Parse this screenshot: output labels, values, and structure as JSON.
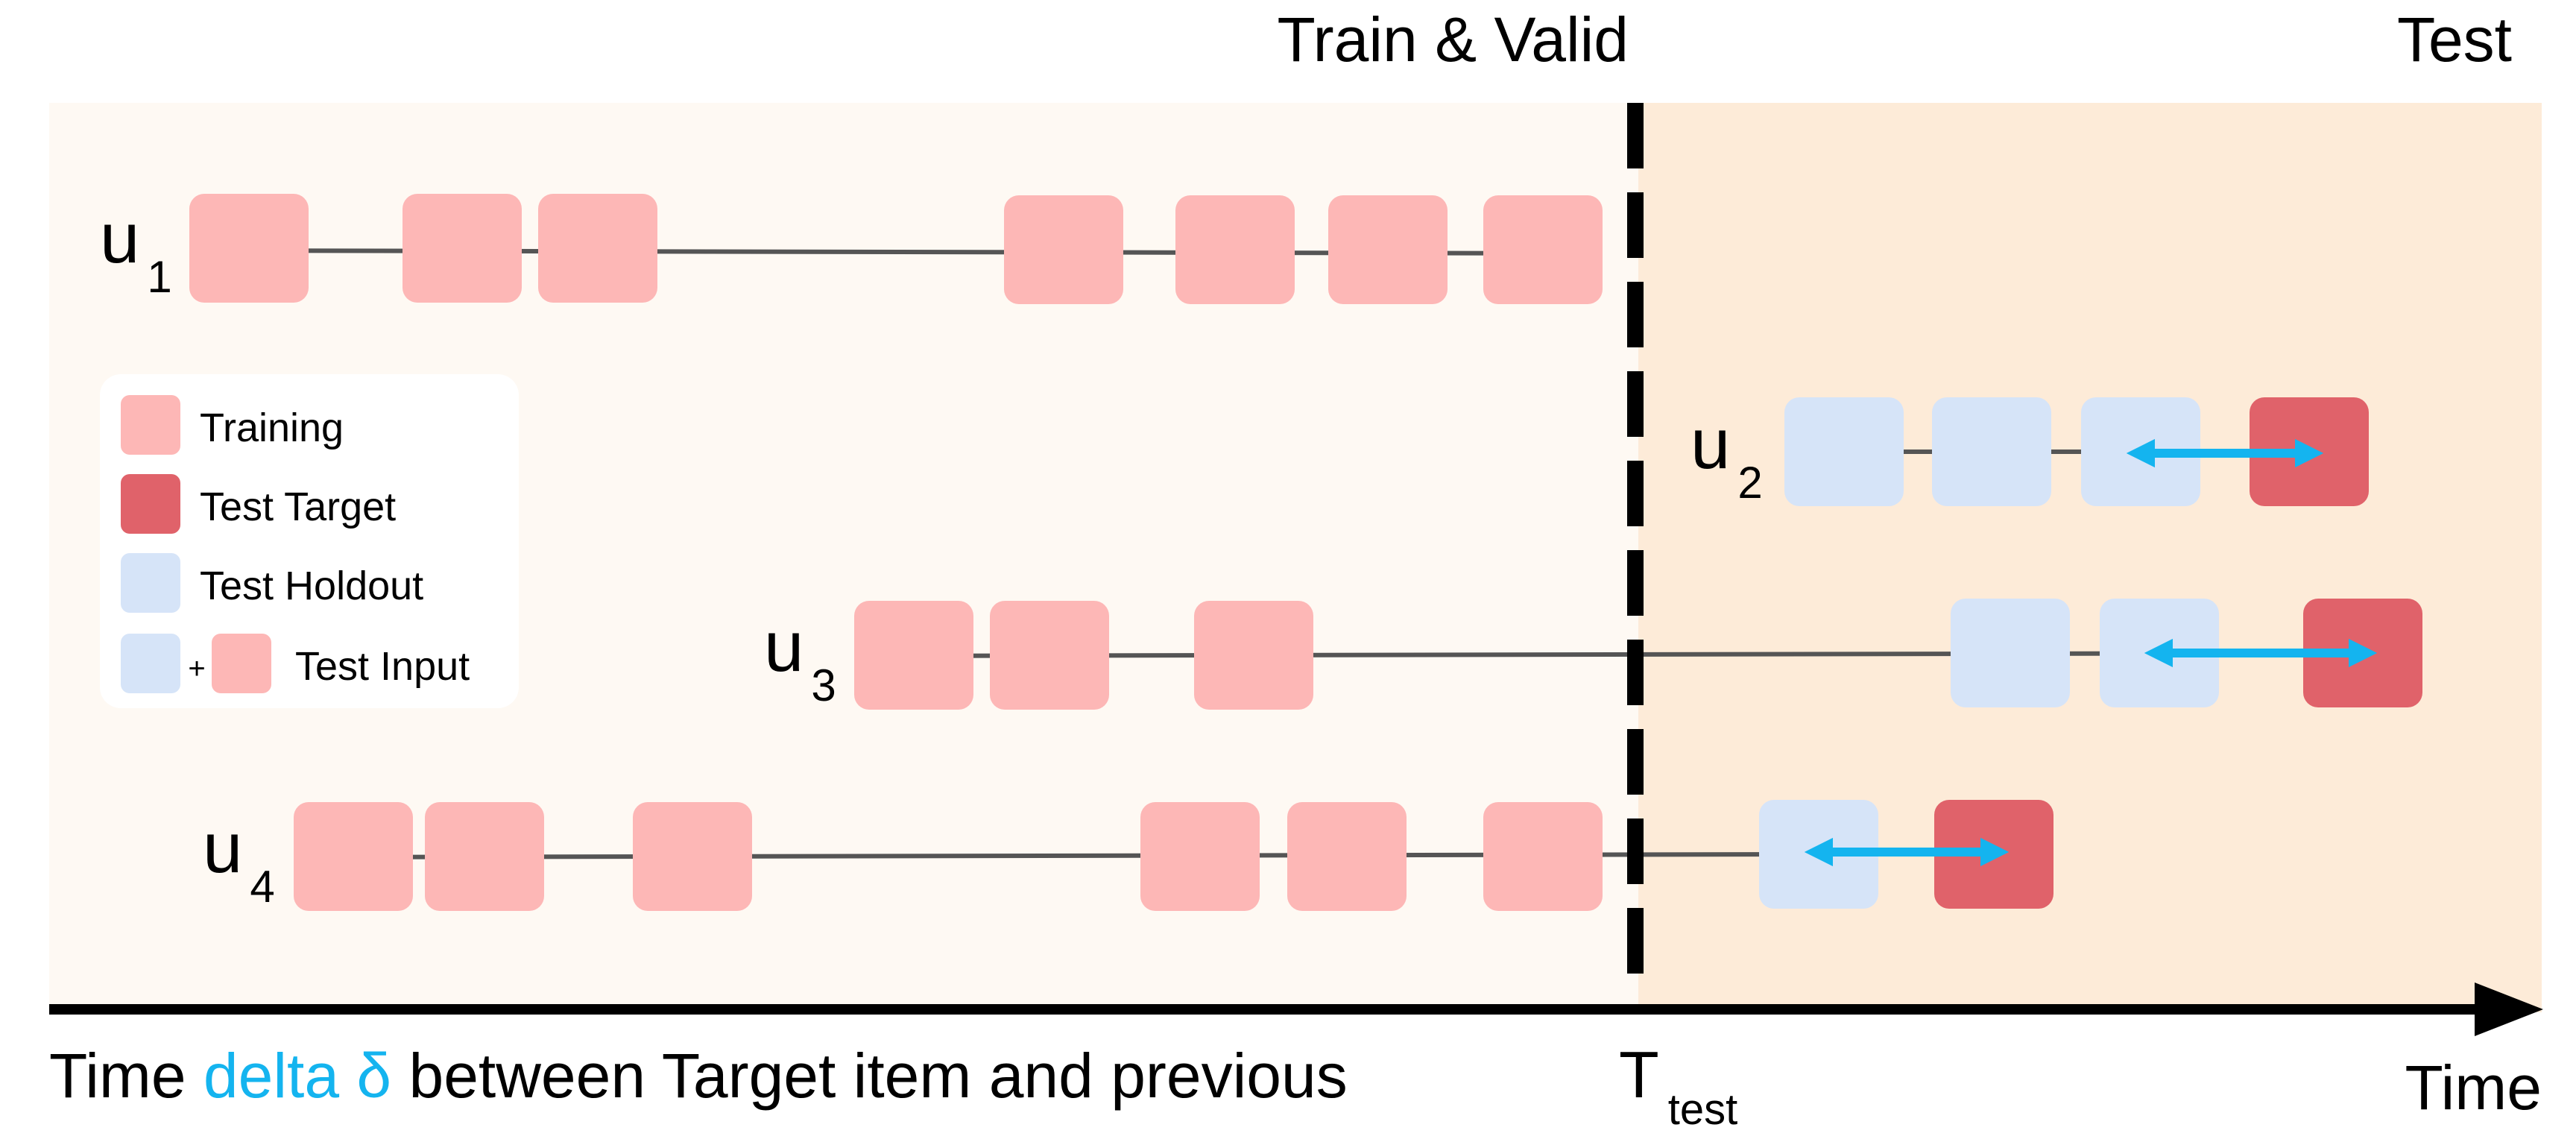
{
  "headers": {
    "train_valid": "Train & Valid",
    "test": "Test"
  },
  "users": [
    {
      "label": "u",
      "subscript": "1",
      "training_count": 7,
      "holdout_count": 0,
      "has_target": false
    },
    {
      "label": "u",
      "subscript": "2",
      "training_count": 0,
      "holdout_count": 3,
      "has_target": true
    },
    {
      "label": "u",
      "subscript": "3",
      "training_count": 3,
      "holdout_count": 2,
      "has_target": true
    },
    {
      "label": "u",
      "subscript": "4",
      "training_count": 6,
      "holdout_count": 1,
      "has_target": true
    }
  ],
  "legend": {
    "training": "Training",
    "test_target": "Test Target",
    "test_holdout": "Test Holdout",
    "plus": "+",
    "test_input": "Test Input"
  },
  "axis": {
    "caption_prefix": "Time ",
    "caption_highlight": "delta δ",
    "caption_suffix": " between Target item and previous",
    "split_label": "T",
    "split_subscript": "test",
    "end_label": "Time"
  },
  "colors": {
    "train_region": "#fef9f3",
    "test_region": "#fdebd8",
    "training": "#fdb7b6",
    "test_target": "#e0626a",
    "test_holdout": "#d6e4f8",
    "delta_arrow": "#14b4ef",
    "highlight_text": "#14b4ef",
    "timeline": "#555555"
  }
}
